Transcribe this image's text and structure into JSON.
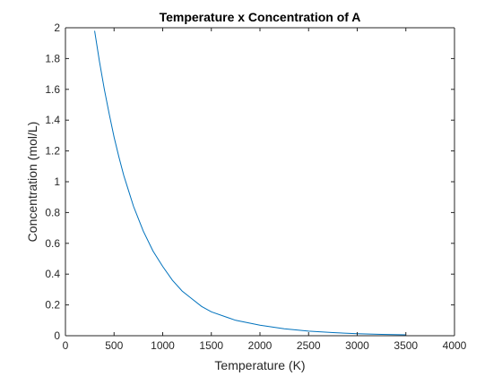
{
  "chart_data": {
    "type": "line",
    "title": "Temperature x Concentration of A",
    "xlabel": "Temperature (K)",
    "ylabel": "Concentration (mol/L)",
    "xlim": [
      0,
      4000
    ],
    "ylim": [
      0,
      2
    ],
    "xticks": [
      0,
      500,
      1000,
      1500,
      2000,
      2500,
      3000,
      3500,
      4000
    ],
    "yticks": [
      0,
      0.2,
      0.4,
      0.6,
      0.8,
      1,
      1.2,
      1.4,
      1.6,
      1.8,
      2
    ],
    "xtick_labels": [
      "0",
      "500",
      "1000",
      "1500",
      "2000",
      "2500",
      "3000",
      "3500",
      "4000"
    ],
    "ytick_labels": [
      "0",
      "0.2",
      "0.4",
      "0.6",
      "0.8",
      "1",
      "1.2",
      "1.4",
      "1.6",
      "1.8",
      "2"
    ],
    "grid": false,
    "series": [
      {
        "color": "#0072bd",
        "x": [
          300,
          350,
          400,
          450,
          500,
          550,
          600,
          650,
          700,
          750,
          800,
          900,
          1000,
          1100,
          1200,
          1300,
          1400,
          1500,
          1750,
          2000,
          2250,
          2500,
          2750,
          3000,
          3250,
          3500
        ],
        "y": [
          1.98,
          1.78,
          1.6,
          1.44,
          1.29,
          1.16,
          1.04,
          0.94,
          0.84,
          0.76,
          0.68,
          0.55,
          0.45,
          0.36,
          0.29,
          0.24,
          0.19,
          0.155,
          0.1,
          0.068,
          0.045,
          0.03,
          0.02,
          0.013,
          0.009,
          0.006
        ]
      }
    ]
  }
}
